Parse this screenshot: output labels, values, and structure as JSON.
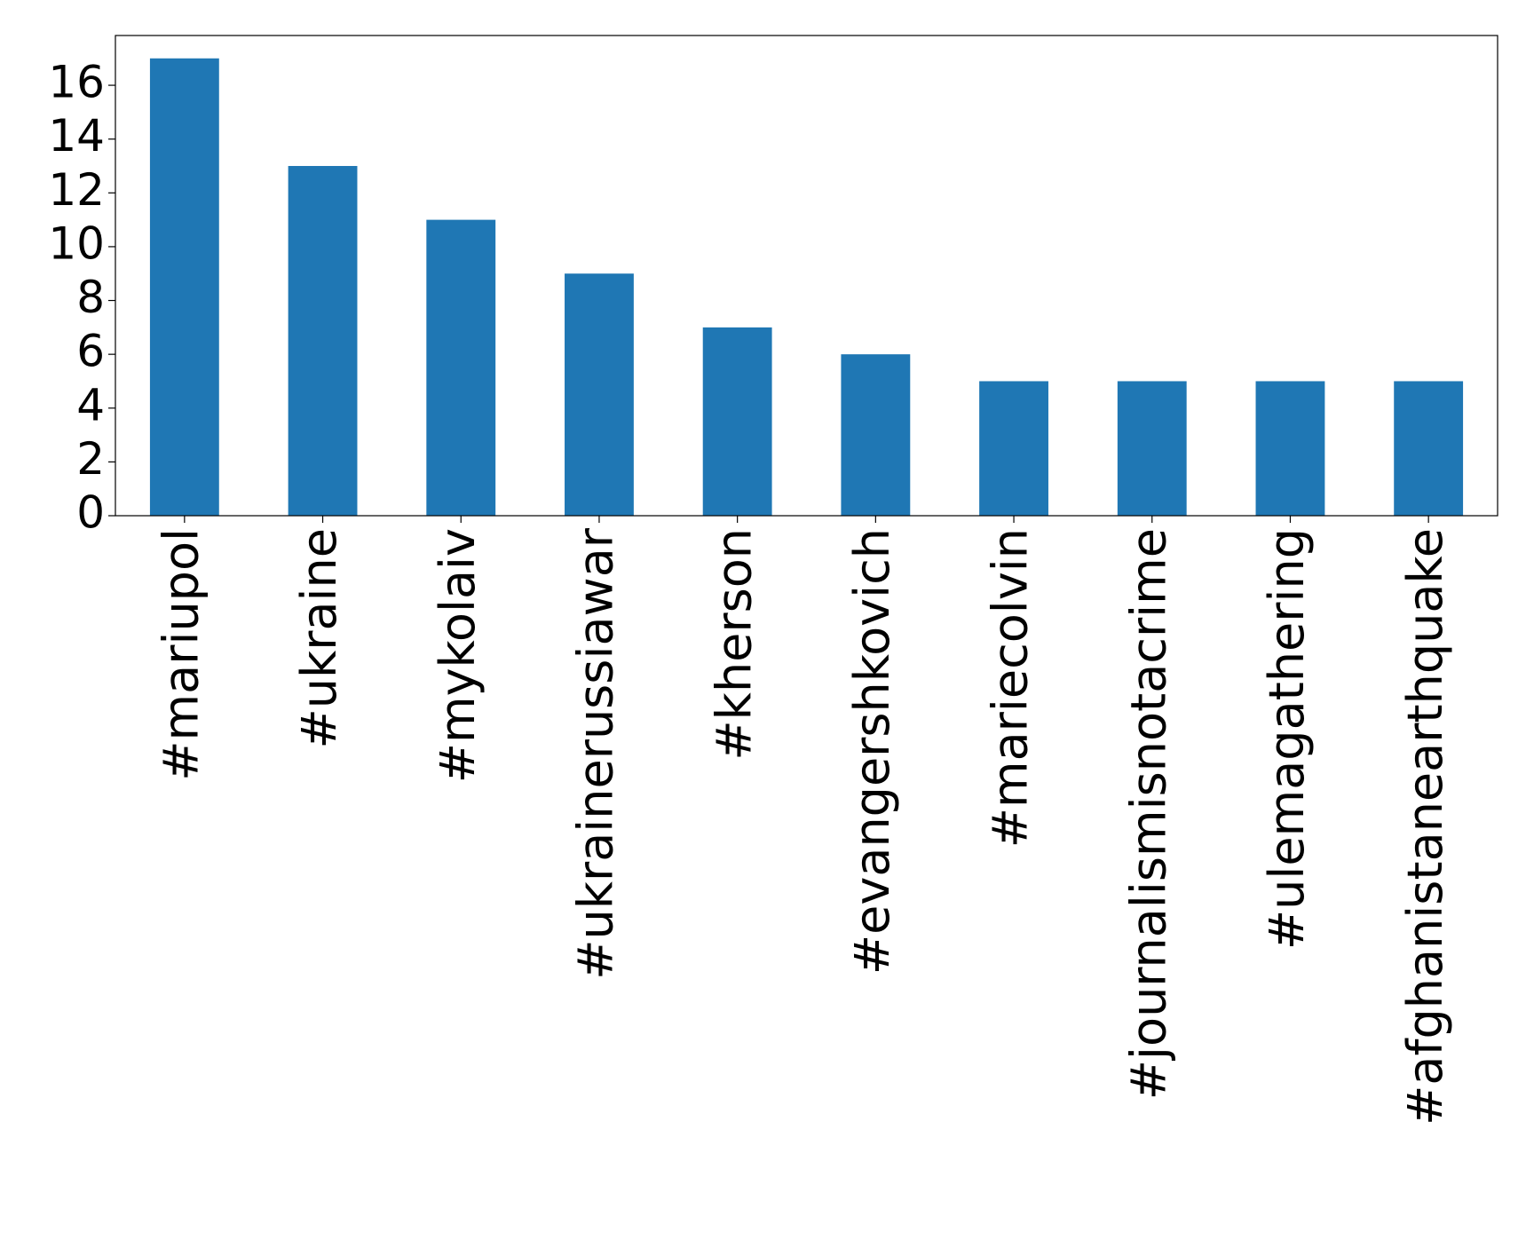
{
  "chart_data": {
    "type": "bar",
    "categories": [
      "#mariupol",
      "#ukraine",
      "#mykolaiv",
      "#ukrainerussiawar",
      "#kherson",
      "#evangershkovich",
      "#mariecolvin",
      "#journalismisnotacrime",
      "#ulemagathering",
      "#afghanistanearthquake"
    ],
    "values": [
      17,
      13,
      11,
      9,
      7,
      6,
      5,
      5,
      5,
      5
    ],
    "color": "#1f77b4",
    "ylim": [
      0,
      17.85
    ],
    "yticks": [
      0,
      2,
      4,
      6,
      8,
      10,
      12,
      14,
      16
    ],
    "grid": false
  }
}
